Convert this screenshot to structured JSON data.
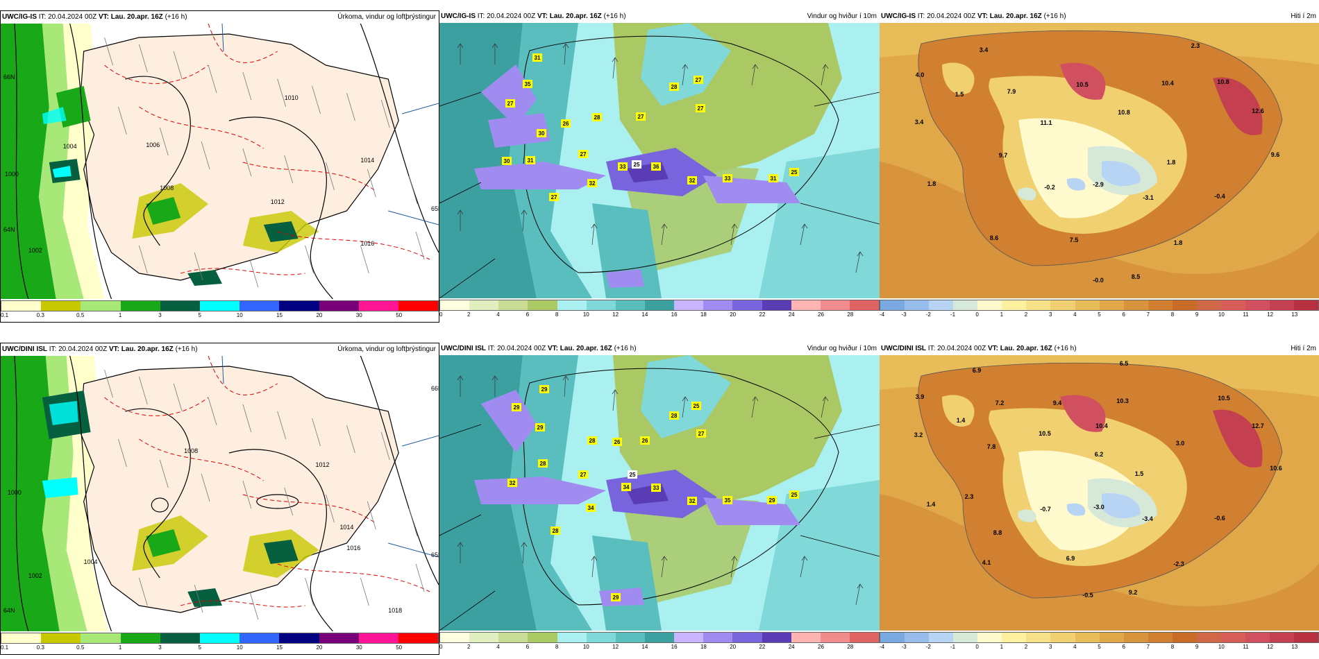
{
  "rows": [
    {
      "model": "UWC/IG-IS",
      "it": "IT: 20.04.2024 00Z",
      "vt_label": "VT:",
      "vt": "Lau. 20.apr. 16Z",
      "step": "(+16 h)",
      "panels": {
        "precip": {
          "title": "Úrkoma, vindur og loftþrýstingur",
          "isobar_labels": [
            "1004",
            "1006",
            "1008",
            "1010",
            "1012",
            "1014",
            "1016",
            "1000",
            "1002"
          ],
          "lat_labels": [
            "66N",
            "65N",
            "64N"
          ]
        },
        "wind": {
          "title": "Vindur og hviður í 10m",
          "gust_labels": [
            "31",
            "35",
            "27",
            "28",
            "26",
            "30",
            "27",
            "31",
            "30",
            "27",
            "32",
            "33",
            "25",
            "36",
            "32",
            "33",
            "31",
            "25",
            "27",
            "28",
            "27",
            "27"
          ]
        },
        "temp": {
          "title": "Hiti í 2m",
          "values": [
            "3.4",
            "2.3",
            "4.0",
            "1.5",
            "7.9",
            "10.5",
            "10.4",
            "10.8",
            "3.4",
            "11.1",
            "10.8",
            "12.6",
            "9.7",
            "1.8",
            "9.6",
            "1.8",
            "-0.2",
            "-2.9",
            "-3.1",
            "-0.4",
            "8.6",
            "7.5",
            "1.8",
            "-0.0",
            "8.5"
          ]
        }
      }
    },
    {
      "model": "UWC/DINI ISL",
      "it": "IT: 20.04.2024 00Z",
      "vt_label": "VT:",
      "vt": "Lau. 20.apr. 16Z",
      "step": "(+16 h)",
      "panels": {
        "precip": {
          "title": "Úrkoma, vindur og loftþrýstingur",
          "isobar_labels": [
            "1008",
            "1012",
            "1014",
            "1016",
            "1018",
            "1000",
            "1002",
            "1004"
          ],
          "lat_labels": [
            "66N",
            "65N",
            "64N"
          ]
        },
        "wind": {
          "title": "Vindur og hviður í 10m",
          "gust_labels": [
            "29",
            "29",
            "29",
            "28",
            "25",
            "26",
            "26",
            "28",
            "27",
            "28",
            "32",
            "27",
            "25",
            "34",
            "33",
            "32",
            "35",
            "29",
            "25",
            "34",
            "28",
            "29"
          ]
        },
        "temp": {
          "title": "Hiti í 2m",
          "values": [
            "6.9",
            "6.5",
            "3.9",
            "7.2",
            "9.4",
            "10.3",
            "10.5",
            "1.4",
            "10.5",
            "10.4",
            "12.7",
            "3.2",
            "7.8",
            "6.2",
            "3.0",
            "1.5",
            "10.6",
            "1.4",
            "2.3",
            "-0.7",
            "-3.0",
            "-3.4",
            "-0.6",
            "8.8",
            "4.1",
            "6.9",
            "-2.3",
            "-0.5",
            "9.2"
          ]
        }
      }
    }
  ],
  "legends": {
    "precip": {
      "ticks": [
        "0.1",
        "0.3",
        "0.5",
        "1",
        "3",
        "5",
        "10",
        "15",
        "20",
        "30",
        "50"
      ],
      "colors": [
        "#ffffcc",
        "#c8c800",
        "#a8e878",
        "#18a818",
        "#066040",
        "#00ffff",
        "#3264ff",
        "#000080",
        "#780078",
        "#ff1493",
        "#ff0000"
      ]
    },
    "wind": {
      "ticks": [
        "0",
        "2",
        "4",
        "6",
        "8",
        "10",
        "12",
        "14",
        "16",
        "18",
        "20",
        "22",
        "24",
        "26",
        "28"
      ],
      "colors": [
        "#ffffe0",
        "#e0eec0",
        "#c8dc96",
        "#aac864",
        "#aaf0f0",
        "#80d8d8",
        "#5abebe",
        "#3ca0a0",
        "#c8b4ff",
        "#a08cf0",
        "#7864dc",
        "#5a3cb4",
        "#ffb4b4",
        "#f08c8c",
        "#e06464"
      ]
    },
    "temp": {
      "ticks": [
        "-4",
        "-3",
        "-2",
        "-1",
        "0",
        "1",
        "2",
        "3",
        "4",
        "5",
        "6",
        "7",
        "8",
        "9",
        "10",
        "11",
        "12",
        "13"
      ],
      "colors": [
        "#7aa8e0",
        "#98bcec",
        "#b8d4f4",
        "#d6e8d8",
        "#fffacd",
        "#fff0a0",
        "#f7e08a",
        "#f0d070",
        "#e8bc58",
        "#e0a848",
        "#d8943c",
        "#d08030",
        "#c86c28",
        "#d06848",
        "#d85c58",
        "#d05060",
        "#c44050",
        "#b83040"
      ]
    }
  }
}
